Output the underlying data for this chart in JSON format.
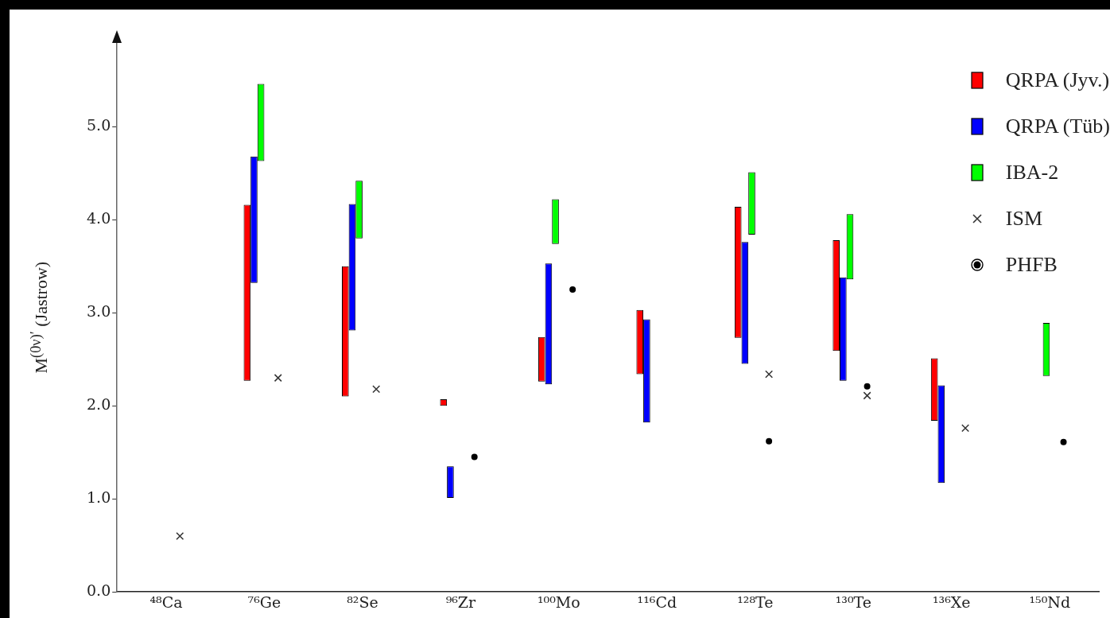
{
  "chart_data": [
    {
      "type": "bar",
      "ylabel": "M$^{(0ν)′}$ (Jastrow)",
      "categories": [
        "⁴⁸Ca",
        "⁷⁶Ge",
        "⁸²Se",
        "⁹⁶Zr",
        "¹⁰⁰Mo",
        "¹¹⁶Cd",
        "¹²⁸Te",
        "¹³⁰Te",
        "¹³⁶Xe",
        "¹⁵⁰Nd"
      ],
      "ylim": [
        0,
        5.9
      ],
      "yticks": [
        {
          "value": 0,
          "label": "0.0"
        },
        {
          "value": 1,
          "label": "1.0"
        },
        {
          "value": 2,
          "label": "2.0"
        },
        {
          "value": 3,
          "label": "3.0"
        },
        {
          "value": 4,
          "label": "4.0"
        },
        {
          "value": 5,
          "label": "5.0"
        }
      ],
      "grid": false,
      "legend": "top right",
      "series": [
        {
          "name": "QRPA (Jyv.)",
          "color": "#ff0000",
          "base": [
            null,
            2.27,
            2.1,
            2.0,
            2.26,
            2.34,
            2.73,
            2.59,
            1.84,
            null
          ],
          "values": [
            null,
            1.89,
            1.4,
            0.07,
            0.48,
            0.69,
            1.41,
            1.19,
            0.67,
            null
          ]
        },
        {
          "name": "QRPA (Tüb)",
          "color": "#0000ff",
          "base": [
            null,
            3.32,
            2.81,
            1.01,
            2.23,
            1.82,
            2.45,
            2.27,
            1.17,
            null
          ],
          "values": [
            null,
            1.36,
            1.36,
            0.34,
            1.3,
            1.11,
            1.31,
            1.11,
            1.05,
            null
          ]
        },
        {
          "name": "IBA-2",
          "color": "#00ff00",
          "base": [
            null,
            4.63,
            3.8,
            null,
            3.74,
            null,
            3.84,
            3.36,
            null,
            2.32
          ],
          "values": [
            null,
            0.83,
            0.62,
            null,
            0.48,
            null,
            0.67,
            0.7,
            null,
            0.57
          ]
        },
        {
          "name": "ISM",
          "type": "scatter",
          "marker": "cross",
          "color": "#333333",
          "x": [
            "⁴⁸Ca",
            "⁷⁶Ge",
            "⁸²Se",
            "¹²⁸Te",
            "¹³⁰Te",
            "¹³⁶Xe"
          ],
          "values": [
            0.6,
            2.3,
            2.18,
            2.34,
            2.11,
            1.76
          ]
        },
        {
          "name": "PHFB",
          "type": "scatter",
          "marker": "circle",
          "color": "#000000",
          "x": [
            "⁹⁶Zr",
            "¹⁰⁰Mo",
            "¹²⁸Te",
            "¹³⁰Te",
            "¹⁵⁰Nd"
          ],
          "values": [
            1.45,
            3.25,
            1.62,
            2.21,
            1.61
          ]
        }
      ]
    }
  ]
}
